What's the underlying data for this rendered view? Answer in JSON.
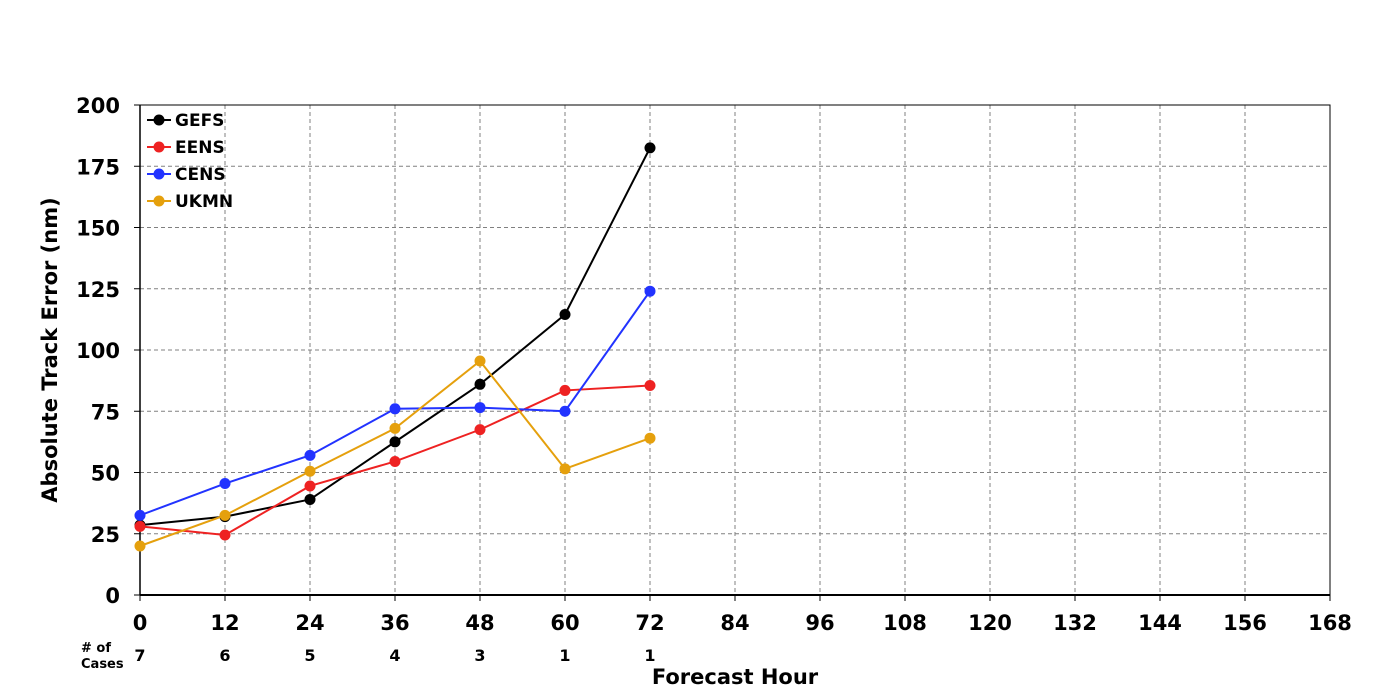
{
  "chart_data": {
    "type": "line",
    "xlabel": "Forecast Hour",
    "ylabel": "Absolute Track Error (nm)",
    "xlim": [
      0,
      168
    ],
    "ylim": [
      0,
      200
    ],
    "x_ticks": [
      "0",
      "12",
      "24",
      "36",
      "48",
      "60",
      "72",
      "84",
      "96",
      "108",
      "120",
      "132",
      "144",
      "156",
      "168"
    ],
    "y_ticks": [
      "0",
      "25",
      "50",
      "75",
      "100",
      "125",
      "150",
      "175",
      "200"
    ],
    "grid": true,
    "legend_position": "top-left",
    "x": [
      0,
      12,
      24,
      36,
      48,
      60,
      72
    ],
    "series": [
      {
        "name": "GEFS",
        "color": "#000000",
        "values": [
          28.5,
          32,
          39,
          62.5,
          86,
          114.5,
          182.5
        ]
      },
      {
        "name": "EENS",
        "color": "#ee2222",
        "values": [
          28,
          24.5,
          44.5,
          54.5,
          67.5,
          83.5,
          85.5
        ]
      },
      {
        "name": "CENS",
        "color": "#2233ff",
        "values": [
          32.5,
          45.5,
          57,
          76,
          76.5,
          75,
          124
        ]
      },
      {
        "name": "UKMN",
        "color": "#e5a00d",
        "values": [
          20,
          32.5,
          50.5,
          68,
          95.5,
          51.5,
          64
        ]
      }
    ],
    "cases": {
      "title_line1": "# of",
      "title_line2": "Cases",
      "x": [
        0,
        12,
        24,
        36,
        48,
        60,
        72
      ],
      "counts": [
        "7",
        "6",
        "5",
        "4",
        "3",
        "1",
        "1"
      ]
    }
  }
}
